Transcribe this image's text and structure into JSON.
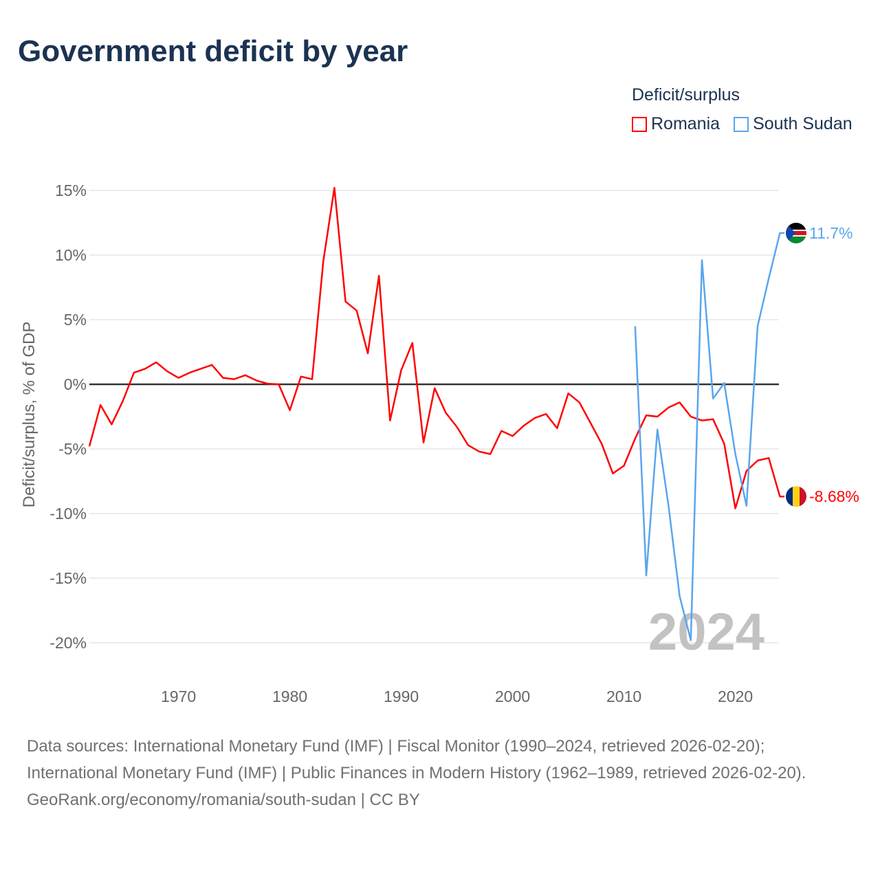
{
  "title": "Government deficit by year",
  "legend": {
    "title": "Deficit/surplus",
    "items": [
      {
        "label": "Romania",
        "color": "#ff0000"
      },
      {
        "label": "South Sudan",
        "color": "#5aa5ec"
      }
    ]
  },
  "chart_data": {
    "type": "line",
    "title": "Government deficit by year",
    "ylabel": "Deficit/surplus, % of GDP",
    "xlabel": "",
    "ylim": [
      -22,
      16.5
    ],
    "xlim": [
      1962,
      2024
    ],
    "yticks": [
      15,
      10,
      5,
      0,
      -5,
      -10,
      -15,
      -20
    ],
    "ytick_labels": [
      "15%",
      "10%",
      "5%",
      "0%",
      "-5%",
      "-10%",
      "-15%",
      "-20%"
    ],
    "xticks": [
      1970,
      1980,
      1990,
      2000,
      2010,
      2020
    ],
    "xtick_labels": [
      "1970",
      "1980",
      "1990",
      "2000",
      "2010",
      "2020"
    ],
    "grid": true,
    "year_watermark": "2024",
    "series": [
      {
        "name": "Romania",
        "color": "#ff0000",
        "end_label": "-8.68%",
        "x": [
          1962,
          1963,
          1964,
          1965,
          1966,
          1967,
          1968,
          1969,
          1970,
          1971,
          1972,
          1973,
          1974,
          1975,
          1976,
          1977,
          1978,
          1979,
          1980,
          1981,
          1982,
          1983,
          1984,
          1985,
          1986,
          1987,
          1988,
          1989,
          1990,
          1991,
          1992,
          1993,
          1994,
          1995,
          1996,
          1997,
          1998,
          1999,
          2000,
          2001,
          2002,
          2003,
          2004,
          2005,
          2006,
          2007,
          2008,
          2009,
          2010,
          2011,
          2012,
          2013,
          2014,
          2015,
          2016,
          2017,
          2018,
          2019,
          2020,
          2021,
          2022,
          2023,
          2024
        ],
        "y": [
          -4.8,
          -1.6,
          -3.1,
          -1.3,
          0.9,
          1.2,
          1.7,
          1.0,
          0.5,
          0.9,
          1.2,
          1.5,
          0.5,
          0.4,
          0.7,
          0.3,
          0.05,
          0,
          -2.0,
          0.6,
          0.4,
          9.5,
          15.2,
          6.4,
          5.7,
          2.4,
          8.4,
          -2.8,
          1.1,
          3.2,
          -4.5,
          -0.3,
          -2.2,
          -3.3,
          -4.7,
          -5.2,
          -5.4,
          -3.6,
          -4.0,
          -3.2,
          -2.6,
          -2.3,
          -3.4,
          -0.7,
          -1.4,
          -3.0,
          -4.6,
          -6.9,
          -6.3,
          -4.2,
          -2.4,
          -2.5,
          -1.8,
          -1.4,
          -2.5,
          -2.8,
          -2.7,
          -4.6,
          -9.6,
          -6.7,
          -5.9,
          -5.7,
          -8.68
        ]
      },
      {
        "name": "South Sudan",
        "color": "#5aa5ec",
        "end_label": "11.7%",
        "x": [
          2011,
          2012,
          2013,
          2014,
          2015,
          2016,
          2017,
          2018,
          2019,
          2020,
          2021,
          2022,
          2023,
          2024
        ],
        "y": [
          4.5,
          -14.8,
          -3.5,
          -9.4,
          -16.4,
          -19.8,
          9.6,
          -1.1,
          0.1,
          -5.4,
          -9.4,
          4.5,
          8.2,
          11.7
        ]
      }
    ]
  },
  "footer": {
    "sources": "Data sources: International Monetary Fund (IMF) | Fiscal Monitor (1990–2024, retrieved 2026-02-20); International Monetary Fund (IMF) | Public Finances in Modern History (1962–1989, retrieved 2026-02-20).",
    "credit": "GeoRank.org/economy/romania/south-sudan | CC BY"
  }
}
